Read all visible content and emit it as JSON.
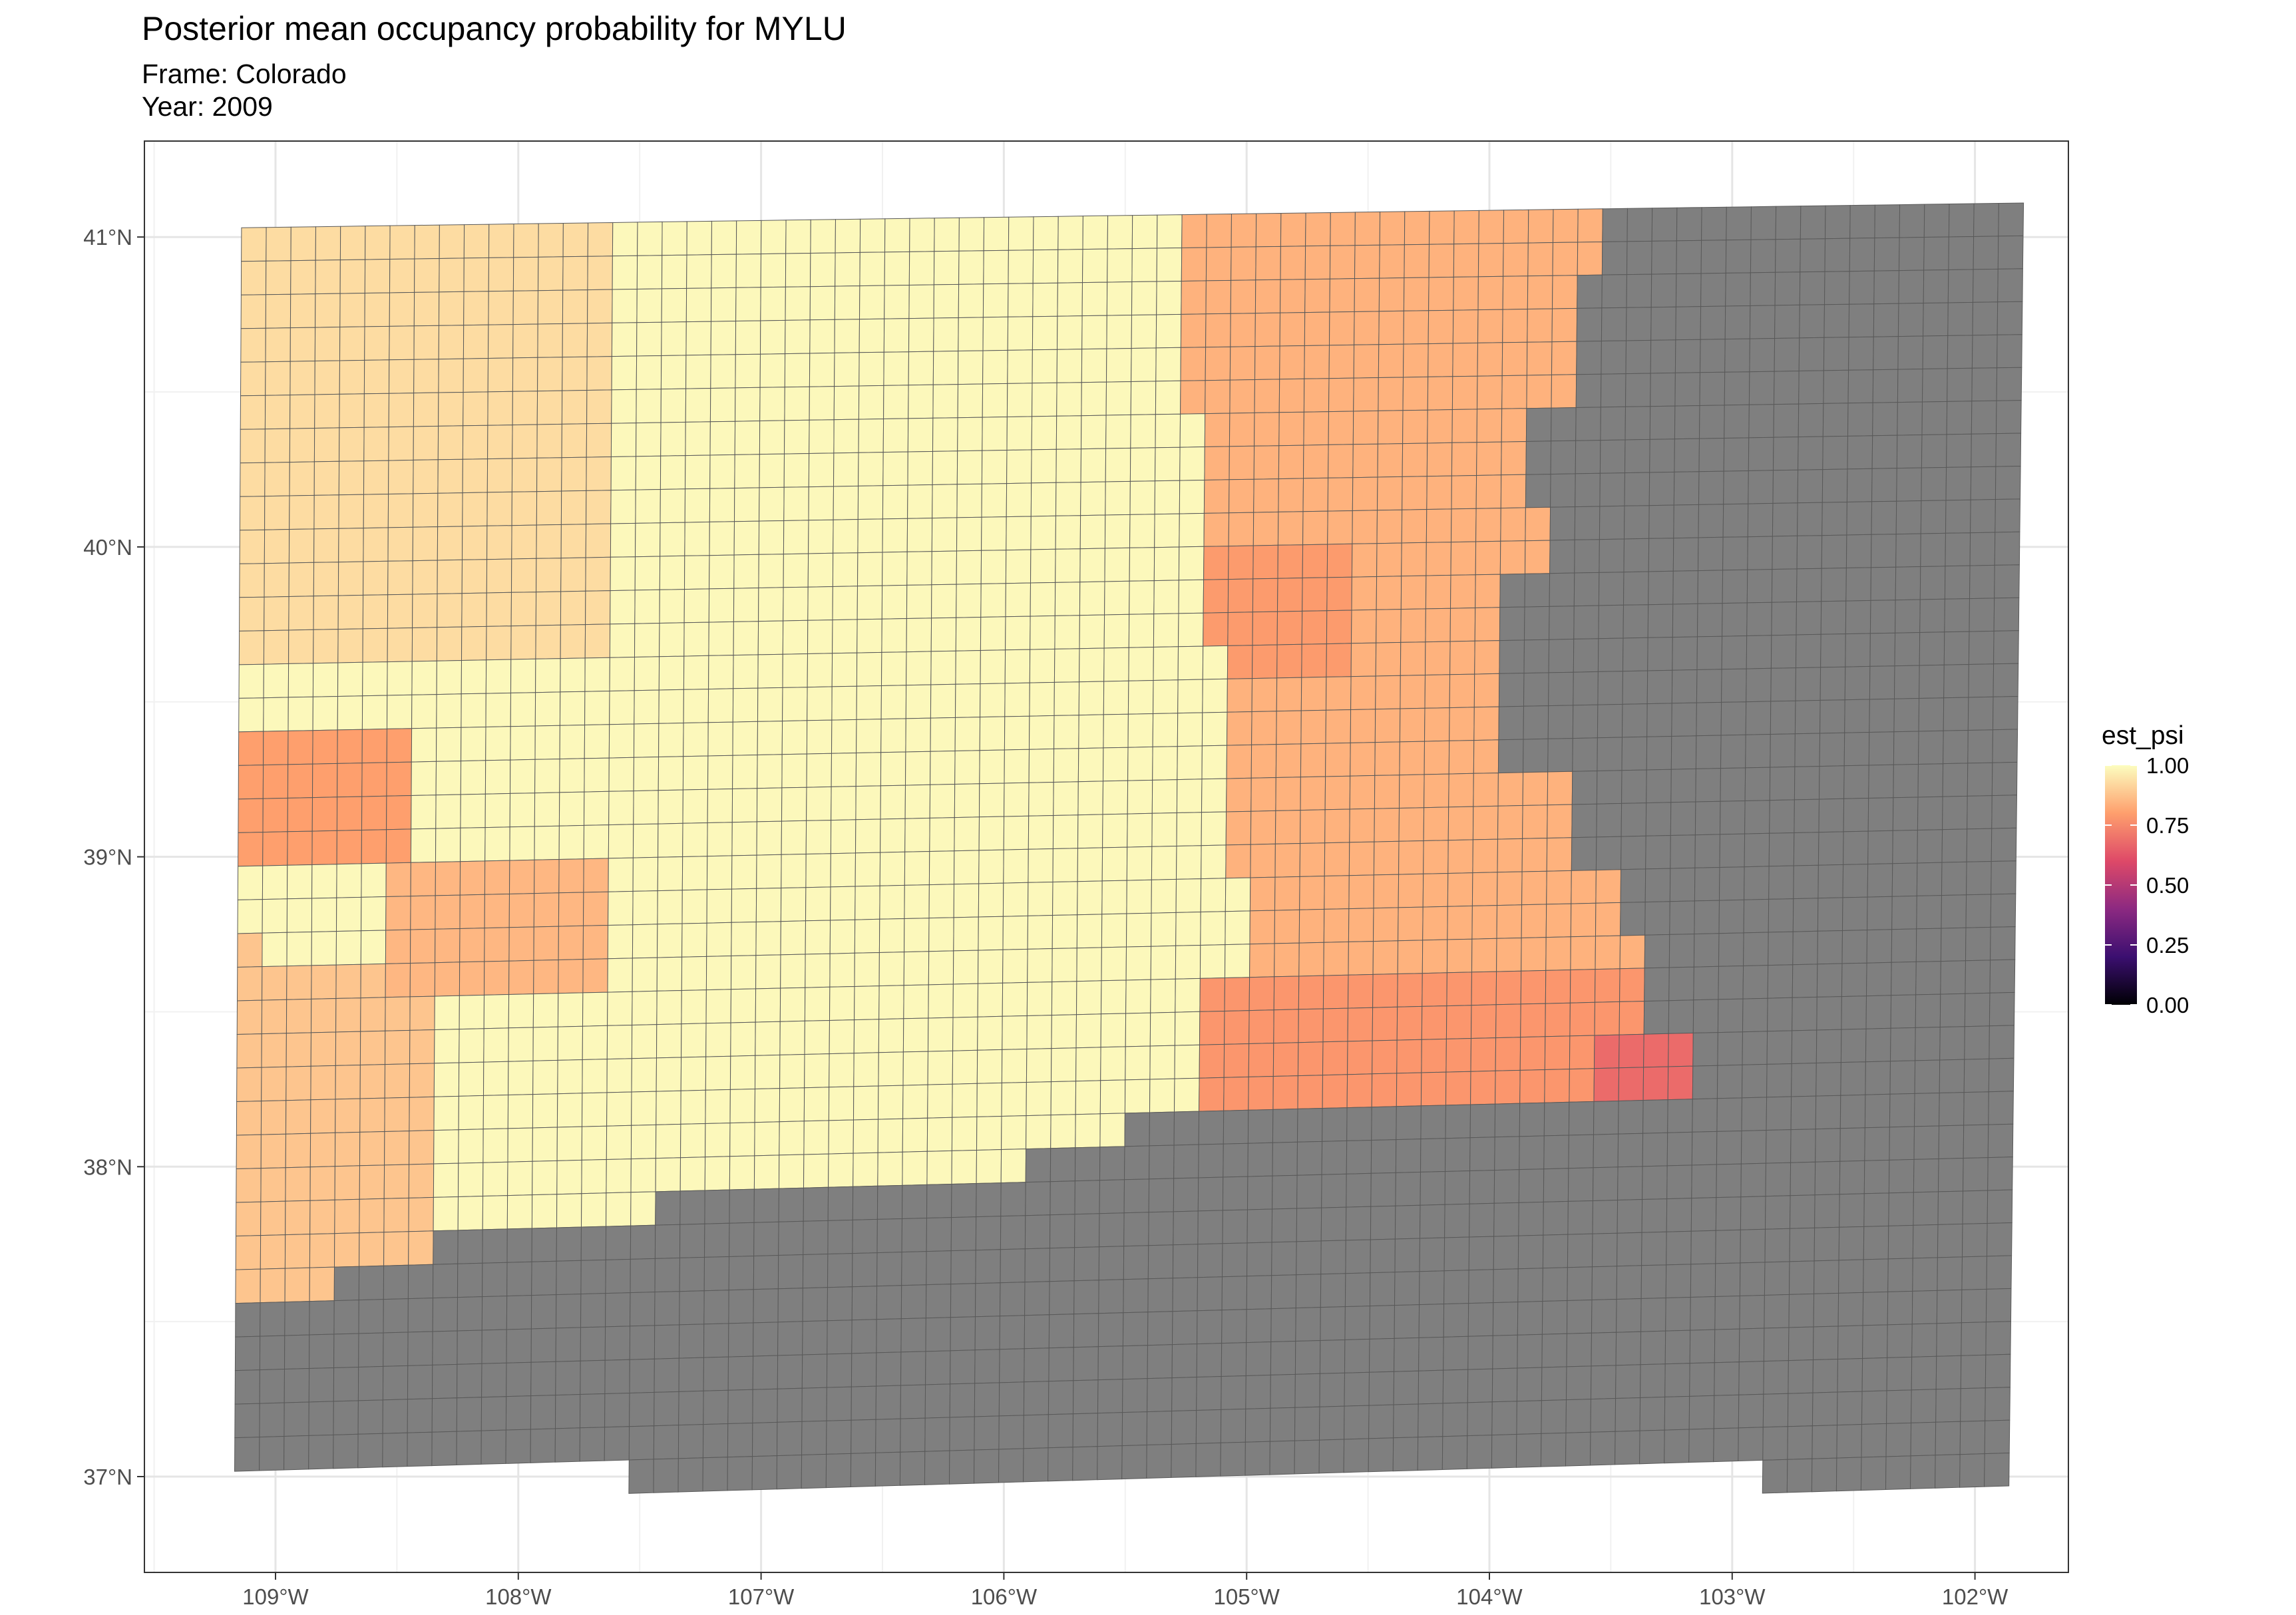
{
  "title": "Posterior mean occupancy probability for MYLU",
  "subtitle_frame": "Frame: Colorado",
  "subtitle_year": "Year: 2009",
  "chart_data": {
    "type": "heatmap",
    "geometry": "gridded map cells over Colorado",
    "variable": "est_psi",
    "x_ticks": [
      "109°W",
      "108°W",
      "107°W",
      "106°W",
      "105°W",
      "104°W",
      "103°W",
      "102°W"
    ],
    "y_ticks": [
      "37°N",
      "38°N",
      "39°N",
      "40°N",
      "41°N"
    ],
    "x_range_deg_lon": [
      -109.55,
      -101.6
    ],
    "y_range_deg_lat": [
      36.65,
      41.33
    ],
    "grid": true,
    "legend": {
      "title": "est_psi",
      "position": "right",
      "breaks": [
        "1.00",
        "0.75",
        "0.50",
        "0.25",
        "0.00"
      ],
      "colormap": [
        "#000004",
        "#3b0f70",
        "#8c2981",
        "#de4968",
        "#fe9f6d",
        "#fcfdbf"
      ]
    },
    "missing_color": "#7f7f7f",
    "regions": [
      {
        "area": "central and west-central mountains",
        "est_psi": 0.99
      },
      {
        "area": "northwest corner",
        "est_psi": 0.93
      },
      {
        "area": "west border, south of 38.5°N",
        "est_psi": 0.88
      },
      {
        "area": "west-central patch near 39.2°N",
        "est_psi": 0.8
      },
      {
        "area": "northern Front Range",
        "est_psi": 0.84
      },
      {
        "area": "Front Range near 39.8°N",
        "est_psi": 0.79
      },
      {
        "area": "south-central plains near 38.5°N",
        "est_psi": 0.78
      },
      {
        "area": "southeast edge near 38.3°N, 103.3°W",
        "est_psi": 0.68
      },
      {
        "area": "eastern plains and southern Colorado",
        "est_psi": null
      }
    ]
  }
}
